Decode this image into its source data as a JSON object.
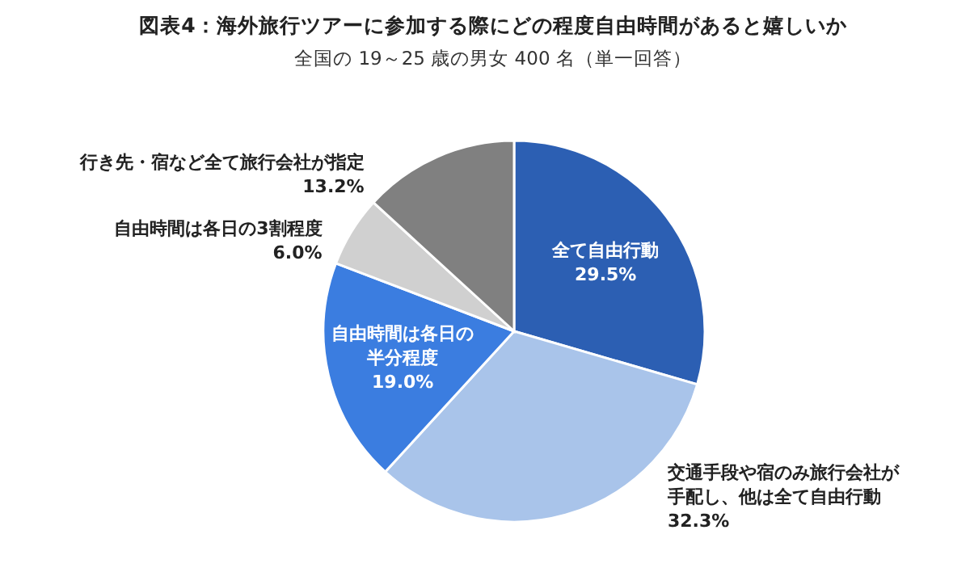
{
  "chart_data": {
    "type": "pie",
    "title": "図表4：海外旅行ツアーに参加する際にどの程度自由時間があると嬉しいか",
    "subtitle": "全国の 19～25 歳の男女 400 名（単一回答）",
    "categories": [
      "全て自由行動",
      "交通手段や宿のみ旅行会社が手配し、他は全て自由行動",
      "自由時間は各日の半分程度",
      "自由時間は各日の3割程度",
      "行き先・宿など全て旅行会社が指定"
    ],
    "values": [
      29.5,
      32.3,
      19.0,
      6.0,
      13.2
    ],
    "value_labels": [
      "29.5%",
      "32.3%",
      "19.0%",
      "6.0%",
      "13.2%"
    ],
    "colors": [
      "#2c5fb3",
      "#a9c4ea",
      "#3b7de0",
      "#d0d0d0",
      "#808080"
    ]
  }
}
